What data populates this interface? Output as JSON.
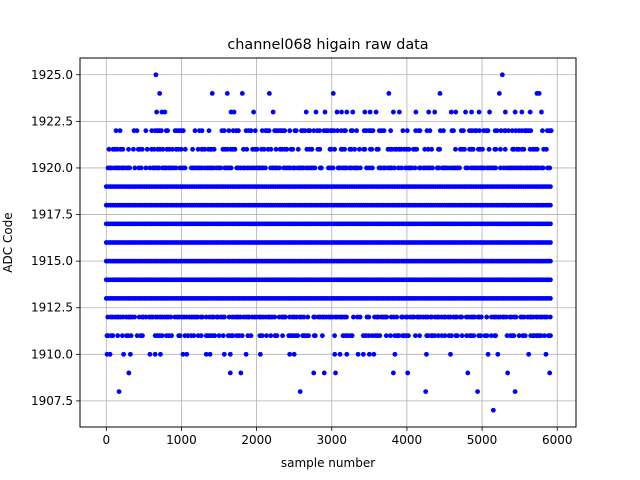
{
  "chart_data": {
    "type": "scatter",
    "title": "channel068 higain raw data",
    "xlabel": "sample number",
    "ylabel": "ADC Code",
    "xlim": [
      -350,
      6250
    ],
    "ylim": [
      1906.1,
      1925.9
    ],
    "xticks": [
      0,
      1000,
      2000,
      3000,
      4000,
      5000,
      6000
    ],
    "xtick_labels": [
      "0",
      "1000",
      "2000",
      "3000",
      "4000",
      "5000",
      "6000"
    ],
    "yticks": [
      1907.5,
      1910.0,
      1912.5,
      1915.0,
      1917.5,
      1920.0,
      1922.5,
      1925.0
    ],
    "ytick_labels": [
      "1907.5",
      "1910.0",
      "1912.5",
      "1915.0",
      "1917.5",
      "1920.0",
      "1922.5",
      "1925.0"
    ],
    "grid": true,
    "marker_color": "#0000ff",
    "series": [
      {
        "sample_count": 5924,
        "levels": [
          {
            "y": 1913,
            "x": [
              0,
              5920
            ]
          },
          {
            "y": 1914,
            "x": [
              0,
              5920
            ]
          },
          {
            "y": 1915,
            "x": [
              0,
              5920
            ]
          },
          {
            "y": 1916,
            "x": [
              0,
              5920
            ]
          },
          {
            "y": 1917,
            "x": [
              0,
              5920
            ]
          },
          {
            "y": 1918,
            "x": [
              0,
              5920
            ]
          },
          {
            "y": 1919,
            "x": [
              0,
              5920
            ]
          },
          {
            "y": 1912,
            "x": [
              20,
              5920
            ]
          },
          {
            "y": 1920,
            "x": [
              20,
              5920
            ]
          },
          {
            "y": 1911,
            "x": [
              0,
              5920
            ]
          },
          {
            "y": 1921,
            "x": [
              0,
              5920
            ]
          },
          {
            "y": 1922,
            "x": [
              100,
              5920
            ]
          }
        ],
        "points": [
          [
            660,
            1925
          ],
          [
            5270,
            1925
          ],
          [
            710,
            1924
          ],
          [
            1410,
            1924
          ],
          [
            1610,
            1924
          ],
          [
            1810,
            1924
          ],
          [
            2170,
            1924
          ],
          [
            3020,
            1924
          ],
          [
            3760,
            1924
          ],
          [
            4440,
            1924
          ],
          [
            5230,
            1924
          ],
          [
            5730,
            1924
          ],
          [
            5760,
            1924
          ],
          [
            670,
            1923
          ],
          [
            740,
            1923
          ],
          [
            780,
            1923
          ],
          [
            1660,
            1923
          ],
          [
            1700,
            1923
          ],
          [
            1960,
            1923
          ],
          [
            2220,
            1923
          ],
          [
            2660,
            1923
          ],
          [
            2790,
            1923
          ],
          [
            2910,
            1923
          ],
          [
            3070,
            1923
          ],
          [
            3130,
            1923
          ],
          [
            3200,
            1923
          ],
          [
            3280,
            1923
          ],
          [
            3440,
            1923
          ],
          [
            3510,
            1923
          ],
          [
            3590,
            1923
          ],
          [
            3820,
            1923
          ],
          [
            3900,
            1923
          ],
          [
            4120,
            1923
          ],
          [
            4290,
            1923
          ],
          [
            4370,
            1923
          ],
          [
            4590,
            1923
          ],
          [
            4650,
            1923
          ],
          [
            4780,
            1923
          ],
          [
            4860,
            1923
          ],
          [
            4960,
            1923
          ],
          [
            5100,
            1923
          ],
          [
            5310,
            1923
          ],
          [
            5440,
            1923
          ],
          [
            5530,
            1923
          ],
          [
            5640,
            1923
          ],
          [
            5790,
            1923
          ],
          [
            10,
            1910
          ],
          [
            50,
            1910
          ],
          [
            230,
            1910
          ],
          [
            320,
            1910
          ],
          [
            580,
            1910
          ],
          [
            650,
            1910
          ],
          [
            720,
            1910
          ],
          [
            1020,
            1910
          ],
          [
            1070,
            1910
          ],
          [
            1330,
            1910
          ],
          [
            1380,
            1910
          ],
          [
            1570,
            1910
          ],
          [
            1650,
            1910
          ],
          [
            1860,
            1910
          ],
          [
            2050,
            1910
          ],
          [
            2440,
            1910
          ],
          [
            2500,
            1910
          ],
          [
            3040,
            1910
          ],
          [
            3110,
            1910
          ],
          [
            3200,
            1910
          ],
          [
            3350,
            1910
          ],
          [
            3420,
            1910
          ],
          [
            3500,
            1910
          ],
          [
            3560,
            1910
          ],
          [
            3840,
            1910
          ],
          [
            4260,
            1910
          ],
          [
            4580,
            1910
          ],
          [
            5080,
            1910
          ],
          [
            5210,
            1910
          ],
          [
            5620,
            1910
          ],
          [
            5850,
            1910
          ],
          [
            300,
            1909
          ],
          [
            1650,
            1909
          ],
          [
            1790,
            1909
          ],
          [
            2760,
            1909
          ],
          [
            2900,
            1909
          ],
          [
            3050,
            1909
          ],
          [
            3820,
            1909
          ],
          [
            4010,
            1909
          ],
          [
            4810,
            1909
          ],
          [
            5340,
            1909
          ],
          [
            5900,
            1909
          ],
          [
            170,
            1908
          ],
          [
            2580,
            1908
          ],
          [
            4250,
            1908
          ],
          [
            4940,
            1908
          ],
          [
            5440,
            1908
          ],
          [
            5150,
            1907
          ]
        ]
      }
    ]
  }
}
